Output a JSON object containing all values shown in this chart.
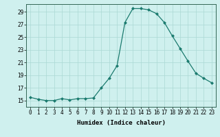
{
  "x": [
    0,
    1,
    2,
    3,
    4,
    5,
    6,
    7,
    8,
    9,
    10,
    11,
    12,
    13,
    14,
    15,
    16,
    17,
    18,
    19,
    20,
    21,
    22,
    23
  ],
  "y": [
    15.5,
    15.2,
    15.0,
    15.0,
    15.3,
    15.1,
    15.3,
    15.3,
    15.4,
    17.0,
    18.5,
    20.5,
    27.3,
    29.5,
    29.5,
    29.3,
    28.7,
    27.3,
    25.2,
    23.2,
    21.2,
    19.3,
    18.5,
    17.8
  ],
  "line_color": "#1a7a6e",
  "marker_color": "#1a7a6e",
  "bg_color": "#cff0ee",
  "grid_color": "#aad8d4",
  "xlabel": "Humidex (Indice chaleur)",
  "xlim": [
    -0.5,
    23.5
  ],
  "ylim": [
    14.0,
    30.2
  ],
  "yticks": [
    15,
    17,
    19,
    21,
    23,
    25,
    27,
    29
  ],
  "xticks": [
    0,
    1,
    2,
    3,
    4,
    5,
    6,
    7,
    8,
    9,
    10,
    11,
    12,
    13,
    14,
    15,
    16,
    17,
    18,
    19,
    20,
    21,
    22,
    23
  ],
  "label_fontsize": 6.5,
  "tick_fontsize": 5.5
}
